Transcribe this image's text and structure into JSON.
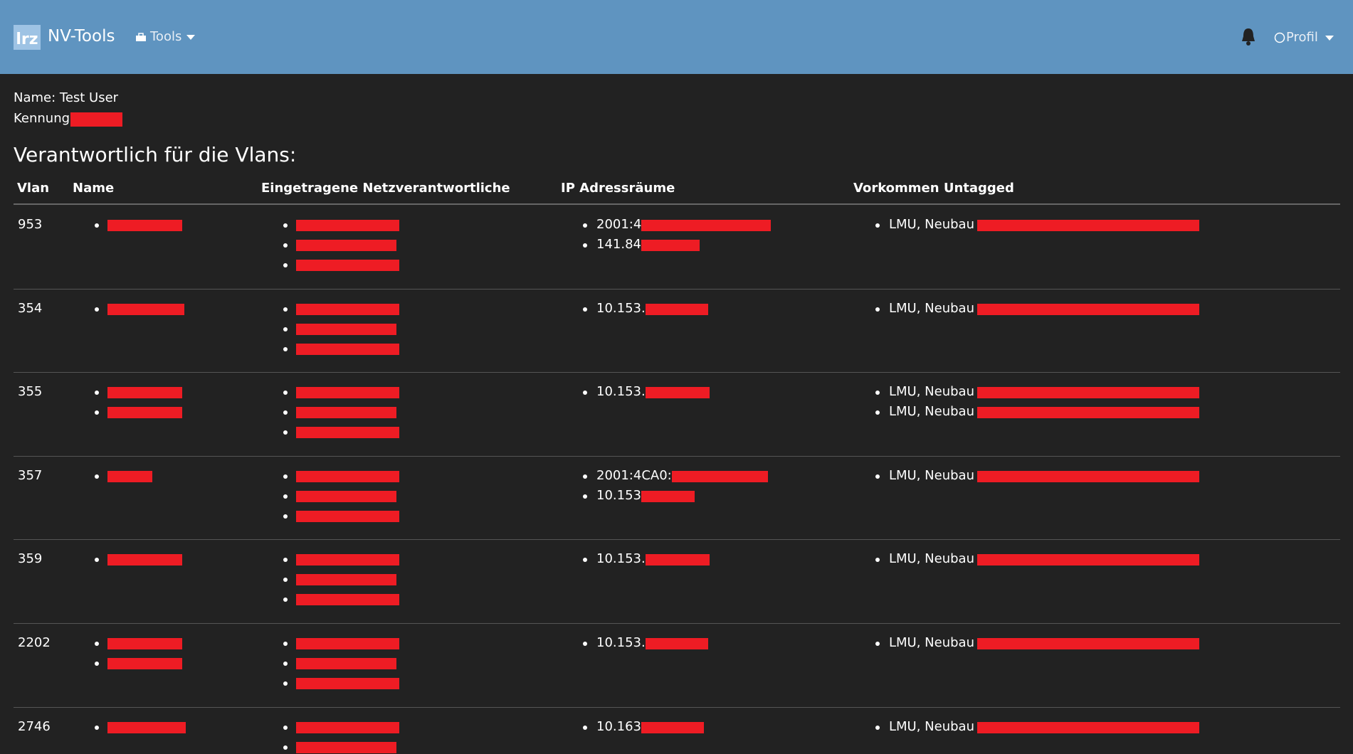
{
  "navbar": {
    "logo": "lrz",
    "brand": "NV-Tools",
    "tools": "Tools",
    "profile": "Profil"
  },
  "user": {
    "name": "Name: Test User",
    "kennung": "Kennung:"
  },
  "heading": "Verantwortlich für die Vlans:",
  "table": {
    "headers": [
      "Vlan",
      "Name",
      "Eingetragene Netzverantwortliche",
      "IP Adressräume",
      "Vorkommen Untagged"
    ],
    "rows": [
      {
        "vlan": "953",
        "ip": [
          "2001:4",
          "141.84"
        ],
        "untagged": [
          "LMU, Neubau"
        ]
      },
      {
        "vlan": "354",
        "ip": [
          "10.153."
        ],
        "untagged": [
          "LMU, Neubau"
        ]
      },
      {
        "vlan": "355",
        "ip": [
          "10.153."
        ],
        "untagged": [
          "LMU, Neubau",
          "LMU, Neubau"
        ]
      },
      {
        "vlan": "357",
        "ip": [
          "2001:4CA0:",
          "10.153"
        ],
        "untagged": [
          "LMU, Neubau"
        ]
      },
      {
        "vlan": "359",
        "ip": [
          "10.153."
        ],
        "untagged": [
          "LMU, Neubau"
        ]
      },
      {
        "vlan": "2202",
        "ip": [
          "10.153."
        ],
        "untagged": [
          "LMU, Neubau"
        ]
      },
      {
        "vlan": "2746",
        "ip": [
          "10.163"
        ],
        "untagged": [
          "LMU, Neubau"
        ]
      }
    ]
  }
}
